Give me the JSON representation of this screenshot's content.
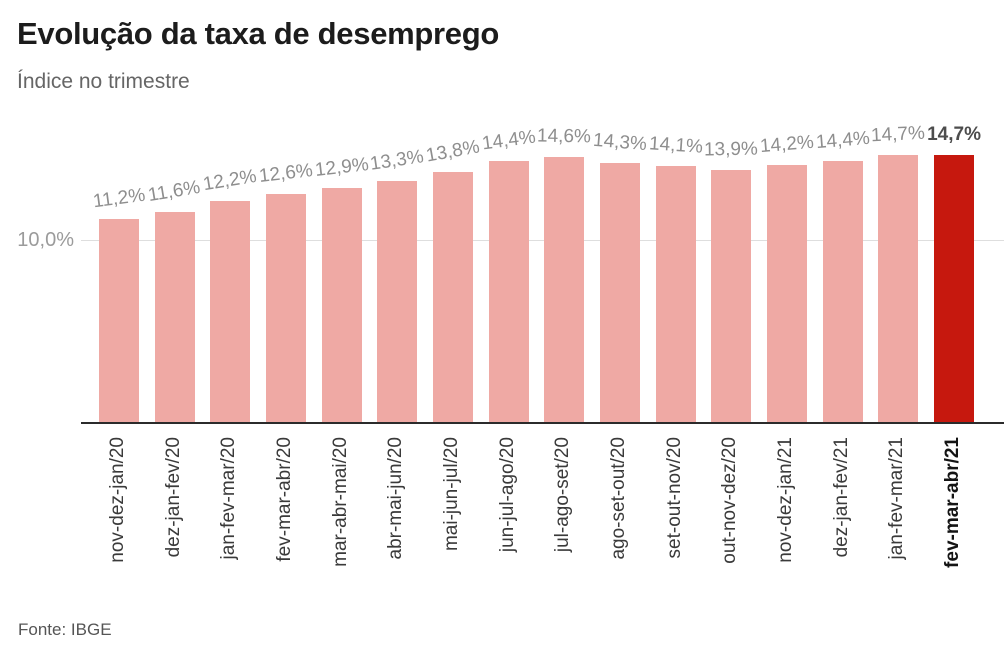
{
  "header": {
    "title": "Evolução da taxa de desemprego",
    "subtitle": "Índice no trimestre"
  },
  "footer": {
    "source": "Fonte: IBGE"
  },
  "chart_data": {
    "type": "bar",
    "title": "Evolução da taxa de desemprego",
    "subtitle": "Índice no trimestre",
    "categories": [
      "nov-dez-jan/20",
      "dez-jan-fev/20",
      "jan-fev-mar/20",
      "fev-mar-abr/20",
      "mar-abr-mai/20",
      "abr-mai-jun/20",
      "mai-jun-jul/20",
      "jun-jul-ago/20",
      "jul-ago-set/20",
      "ago-set-out/20",
      "set-out-nov/20",
      "out-nov-dez/20",
      "nov-dez-jan/21",
      "dez-jan-fev/21",
      "jan-fev-mar/21",
      "fev-mar-abr/21"
    ],
    "values": [
      11.2,
      11.6,
      12.2,
      12.6,
      12.9,
      13.3,
      13.8,
      14.4,
      14.6,
      14.3,
      14.1,
      13.9,
      14.2,
      14.4,
      14.7,
      14.7
    ],
    "value_labels": [
      "11,2%",
      "11,6%",
      "12,2%",
      "12,6%",
      "12,9%",
      "13,3%",
      "13,8%",
      "14,4%",
      "14,6%",
      "14,3%",
      "14,1%",
      "13,9%",
      "14,2%",
      "14,4%",
      "14,7%",
      "14,7%"
    ],
    "highlight_index": 15,
    "y_axis": {
      "tick_label": "10,0%",
      "gridline_value": 10.0,
      "ylim": [
        0,
        16
      ]
    },
    "grid": "single horizontal line at 10.0%",
    "legend": "none",
    "colors": {
      "bar": "#efa9a4",
      "highlight_bar": "#c6180e",
      "value_label": "#8e8e8e",
      "highlight_value_label": "#4d4d4d",
      "axis_line": "#2b2b2b",
      "gridline": "#dedede"
    }
  }
}
